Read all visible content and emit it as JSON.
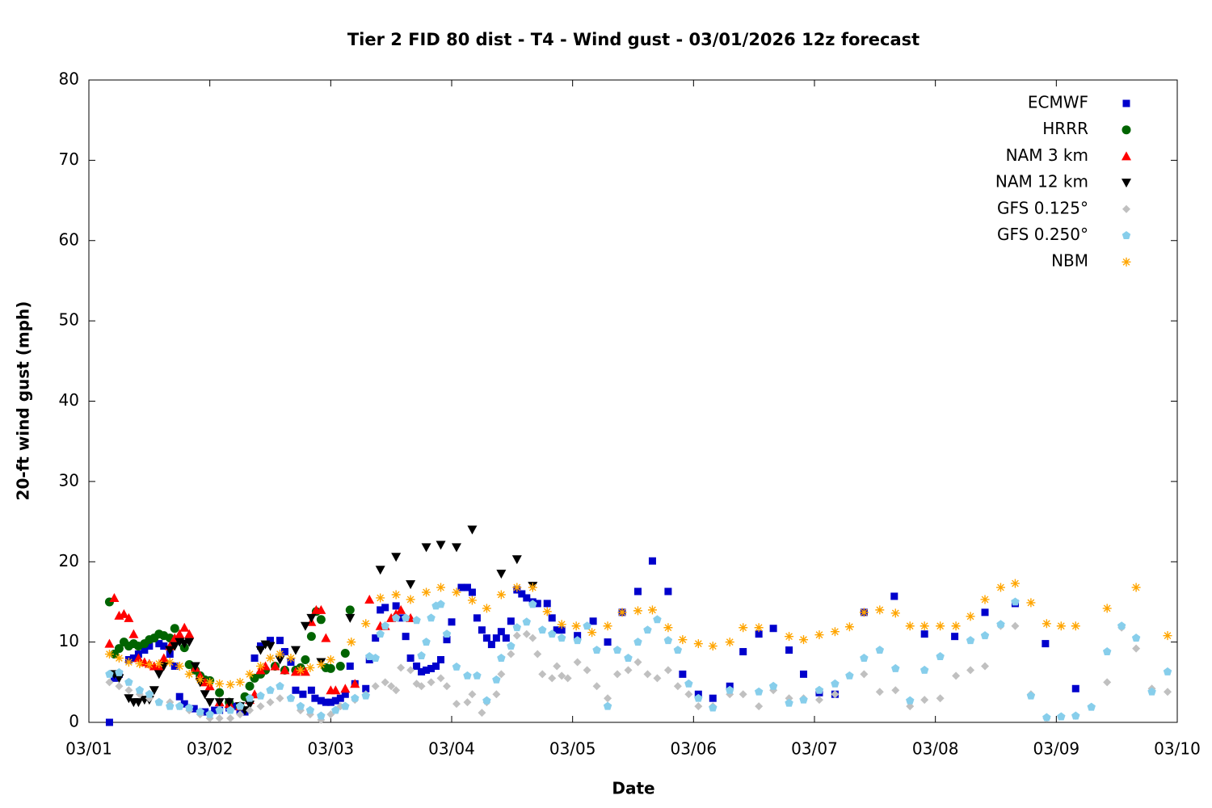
{
  "chart_data": {
    "type": "scatter",
    "title": "Tier 2 FID 80 dist - T4 - Wind gust - 03/01/2026 12z forecast",
    "x_label": "Date",
    "y_label": "20-ft wind gust (mph)",
    "xlim": [
      0,
      9
    ],
    "ylim": [
      0,
      80
    ],
    "xticks": [
      {
        "value": 0,
        "label": "03/01"
      },
      {
        "value": 1,
        "label": "03/02"
      },
      {
        "value": 2,
        "label": "03/03"
      },
      {
        "value": 3,
        "label": "03/04"
      },
      {
        "value": 4,
        "label": "03/05"
      },
      {
        "value": 5,
        "label": "03/06"
      },
      {
        "value": 6,
        "label": "03/07"
      },
      {
        "value": 7,
        "label": "03/08"
      },
      {
        "value": 8,
        "label": "03/09"
      },
      {
        "value": 9,
        "label": "03/10"
      }
    ],
    "yticks": [
      0,
      10,
      20,
      30,
      40,
      50,
      60,
      70,
      80
    ],
    "grid": false,
    "legend": "top-right",
    "series": [
      {
        "name": "ECMWF",
        "color": "#0000cc",
        "marker": "square",
        "x": [
          0.17,
          0.21,
          0.25,
          0.33,
          0.37,
          0.41,
          0.46,
          0.5,
          0.58,
          0.62,
          0.67,
          0.71,
          0.75,
          0.79,
          0.87,
          0.96,
          1.04,
          1.08,
          1.16,
          1.2,
          1.25,
          1.29,
          1.37,
          1.42,
          1.5,
          1.58,
          1.62,
          1.67,
          1.71,
          1.77,
          1.84,
          1.87,
          1.92,
          1.96,
          2.0,
          2.04,
          2.08,
          2.12,
          2.16,
          2.2,
          2.29,
          2.32,
          2.37,
          2.41,
          2.45,
          2.54,
          2.58,
          2.62,
          2.66,
          2.71,
          2.75,
          2.79,
          2.83,
          2.87,
          2.91,
          2.96,
          3.0,
          3.08,
          3.13,
          3.17,
          3.21,
          3.25,
          3.29,
          3.33,
          3.37,
          3.41,
          3.45,
          3.49,
          3.54,
          3.58,
          3.62,
          3.67,
          3.71,
          3.79,
          3.83,
          3.87,
          3.91,
          4.04,
          4.17,
          4.29,
          4.41,
          4.54,
          4.66,
          4.79,
          4.91,
          5.04,
          5.16,
          5.3,
          5.41,
          5.54,
          5.66,
          5.79,
          5.91,
          6.04,
          6.17,
          6.41,
          6.66,
          6.91,
          7.16,
          7.41,
          7.66,
          7.91,
          8.16
        ],
        "values": [
          0,
          5.5,
          6,
          7.8,
          8,
          8.5,
          9,
          9.5,
          9.8,
          9.5,
          8.5,
          7,
          3.2,
          2.3,
          1.7,
          1.3,
          1.5,
          1.5,
          1.8,
          2,
          1.5,
          1.3,
          8,
          9.5,
          10.2,
          10.2,
          8.8,
          7.5,
          4,
          3.5,
          4,
          3,
          2.7,
          2.5,
          2.5,
          2.7,
          3,
          3.5,
          7,
          4.8,
          4.2,
          7.8,
          10.5,
          14,
          14.3,
          14.5,
          13,
          10.7,
          8,
          7,
          6.3,
          6.5,
          6.7,
          7,
          7.8,
          10.3,
          12.5,
          16.8,
          16.8,
          16.2,
          13,
          11.5,
          10.5,
          9.7,
          10.5,
          11.3,
          10.5,
          12.6,
          16.5,
          16,
          15.5,
          15,
          14.8,
          14.8,
          13,
          11.5,
          11.5,
          10.8,
          12.6,
          10,
          13.7,
          16.3,
          20.1,
          16.3,
          6,
          3.5,
          3,
          4.5,
          8.8,
          11,
          11.7,
          9,
          6,
          3.7,
          3.5,
          13.7,
          15.7,
          11,
          10.7,
          13.7,
          14.8,
          9.8,
          4.2
        ]
      },
      {
        "name": "HRRR",
        "color": "#006400",
        "marker": "circle",
        "x": [
          0.17,
          0.21,
          0.25,
          0.29,
          0.33,
          0.37,
          0.41,
          0.46,
          0.5,
          0.54,
          0.58,
          0.62,
          0.67,
          0.71,
          0.75,
          0.79,
          0.83,
          0.88,
          0.92,
          0.96,
          1.0,
          1.08,
          1.16,
          1.25,
          1.29,
          1.33,
          1.37,
          1.42,
          1.46,
          1.54,
          1.62,
          1.71,
          1.75,
          1.79,
          1.84,
          1.88,
          1.92,
          1.96,
          2.0,
          2.08,
          2.12,
          2.16
        ],
        "values": [
          15,
          8.5,
          9.2,
          10,
          9.5,
          9.8,
          9.5,
          9.8,
          10.3,
          10.5,
          11,
          10.8,
          10.5,
          11.7,
          10.3,
          9.3,
          7.2,
          6.5,
          5.8,
          5.3,
          5.2,
          3.7,
          2.5,
          2,
          3.2,
          4.5,
          5.5,
          6,
          6.5,
          7,
          6.5,
          6.5,
          6.8,
          7.8,
          10.7,
          13.8,
          12.8,
          6.8,
          6.7,
          7,
          8.6,
          14
        ]
      },
      {
        "name": "NAM 3 km",
        "color": "#ff0000",
        "marker": "triangle-up",
        "x": [
          0.17,
          0.21,
          0.25,
          0.29,
          0.33,
          0.37,
          0.41,
          0.46,
          0.5,
          0.54,
          0.58,
          0.62,
          0.67,
          0.71,
          0.75,
          0.79,
          0.83,
          0.88,
          0.92,
          0.96,
          1.0,
          1.08,
          1.16,
          1.25,
          1.33,
          1.37,
          1.42,
          1.46,
          1.54,
          1.62,
          1.71,
          1.75,
          1.79,
          1.84,
          1.88,
          1.92,
          1.96,
          2.0,
          2.04,
          2.12,
          2.2,
          2.32,
          2.41,
          2.45,
          2.5,
          2.54,
          2.58,
          2.66
        ],
        "values": [
          9.8,
          15.5,
          13.3,
          13.5,
          13,
          11,
          8,
          7.5,
          7.3,
          7,
          7,
          8,
          9.5,
          10.5,
          11,
          11.8,
          11,
          6.8,
          5.8,
          5,
          4.5,
          2.5,
          2.3,
          2,
          2.8,
          3.5,
          6.5,
          7,
          7,
          6.5,
          6.3,
          6.5,
          6.3,
          12.5,
          14,
          14,
          10.5,
          4,
          4,
          4.2,
          4.8,
          15.3,
          12,
          12,
          13,
          13.5,
          14,
          13
        ]
      },
      {
        "name": "NAM 12 km",
        "color": "#000000",
        "marker": "triangle-down",
        "x": [
          0.21,
          0.25,
          0.33,
          0.37,
          0.41,
          0.46,
          0.5,
          0.54,
          0.58,
          0.62,
          0.67,
          0.71,
          0.75,
          0.79,
          0.83,
          0.88,
          0.92,
          0.96,
          1.0,
          1.08,
          1.16,
          1.25,
          1.29,
          1.33,
          1.42,
          1.46,
          1.5,
          1.58,
          1.71,
          1.79,
          1.84,
          1.92,
          2.16,
          2.41,
          2.54,
          2.66,
          2.79,
          2.91,
          3.04,
          3.17,
          3.41,
          3.54,
          3.67
        ],
        "values": [
          6,
          5.5,
          3,
          2.5,
          2.5,
          2.8,
          2.8,
          4,
          6,
          7,
          9,
          9.5,
          10,
          9.8,
          10,
          7,
          5,
          3.5,
          2.5,
          2.5,
          2.5,
          2,
          1.5,
          2.2,
          9,
          9.7,
          9.5,
          7.8,
          9,
          12,
          13,
          7.5,
          13,
          19,
          20.6,
          17.2,
          21.8,
          22.1,
          21.8,
          24,
          18.5,
          20.3,
          17
        ]
      },
      {
        "name": "GFS 0.125°",
        "color": "#c0c0c0",
        "marker": "diamond",
        "x": [
          0.17,
          0.25,
          0.33,
          0.42,
          0.5,
          0.58,
          0.67,
          0.75,
          0.83,
          0.92,
          1.0,
          1.08,
          1.17,
          1.25,
          1.33,
          1.42,
          1.5,
          1.58,
          1.67,
          1.75,
          1.83,
          1.92,
          2.0,
          2.08,
          2.2,
          2.29,
          2.37,
          2.45,
          2.5,
          2.54,
          2.58,
          2.66,
          2.71,
          2.75,
          2.83,
          2.91,
          2.96,
          3.04,
          3.13,
          3.17,
          3.25,
          3.29,
          3.37,
          3.41,
          3.49,
          3.54,
          3.62,
          3.67,
          3.71,
          3.75,
          3.83,
          3.87,
          3.91,
          3.96,
          4.04,
          4.12,
          4.2,
          4.29,
          4.37,
          4.46,
          4.54,
          4.62,
          4.7,
          4.79,
          4.87,
          4.96,
          5.04,
          5.16,
          5.3,
          5.41,
          5.54,
          5.66,
          5.79,
          5.91,
          6.04,
          6.17,
          6.41,
          6.54,
          6.67,
          6.79,
          6.91,
          7.04,
          7.17,
          7.29,
          7.41,
          7.54,
          7.66,
          7.79,
          7.92,
          8.16,
          8.42,
          8.54,
          8.66,
          8.79,
          8.92
        ],
        "values": [
          5,
          4.5,
          4,
          3.5,
          3,
          2.5,
          2.5,
          2,
          1.5,
          1,
          0.5,
          0.5,
          0.5,
          1,
          1.5,
          2,
          2.5,
          3,
          3,
          1.5,
          1,
          0.3,
          1,
          2,
          2.8,
          3.5,
          4.5,
          5,
          4.5,
          4,
          6.8,
          6.5,
          4.8,
          4.5,
          5,
          5.5,
          4.5,
          2.3,
          2.5,
          3.5,
          1.2,
          2.5,
          3.5,
          6,
          8.5,
          10.8,
          11,
          10.5,
          8.5,
          6,
          5.5,
          7,
          5.8,
          5.5,
          7.5,
          6.5,
          4.5,
          3,
          6,
          6.5,
          7.5,
          6,
          5.5,
          6.5,
          4.5,
          3.5,
          2,
          2,
          3.5,
          3.5,
          2,
          4,
          3,
          3,
          2.8,
          3.5,
          6,
          3.8,
          4,
          2,
          2.8,
          3,
          5.8,
          6.5,
          7,
          12,
          12,
          3.5,
          0.5,
          0.8,
          5,
          11.8,
          9.2,
          4.2,
          3.8
        ]
      },
      {
        "name": "GFS 0.250°",
        "color": "#87ceeb",
        "marker": "pentagon",
        "x": [
          0.17,
          0.25,
          0.33,
          0.42,
          0.5,
          0.58,
          0.67,
          0.75,
          0.83,
          0.92,
          1.0,
          1.08,
          1.17,
          1.25,
          1.33,
          1.42,
          1.5,
          1.58,
          1.67,
          1.75,
          1.83,
          1.92,
          2.04,
          2.12,
          2.2,
          2.29,
          2.32,
          2.37,
          2.41,
          2.45,
          2.54,
          2.62,
          2.71,
          2.75,
          2.79,
          2.83,
          2.87,
          2.91,
          2.96,
          3.04,
          3.13,
          3.21,
          3.29,
          3.37,
          3.41,
          3.49,
          3.54,
          3.62,
          3.67,
          3.75,
          3.83,
          3.91,
          4.04,
          4.12,
          4.2,
          4.29,
          4.37,
          4.46,
          4.54,
          4.62,
          4.7,
          4.79,
          4.87,
          4.96,
          5.04,
          5.16,
          5.3,
          5.54,
          5.66,
          5.79,
          5.91,
          6.04,
          6.17,
          6.29,
          6.41,
          6.54,
          6.67,
          6.79,
          6.91,
          7.04,
          7.29,
          7.41,
          7.54,
          7.66,
          7.79,
          7.92,
          8.04,
          8.16,
          8.29,
          8.42,
          8.54,
          8.66,
          8.79,
          8.92
        ],
        "values": [
          6,
          6.2,
          5,
          4,
          3.5,
          2.5,
          2,
          2,
          1.8,
          1.3,
          1,
          1.5,
          1.5,
          2,
          3,
          3.3,
          4,
          4.5,
          3,
          2,
          1.5,
          0.8,
          1.5,
          2,
          3,
          3.3,
          8.2,
          8,
          11,
          12,
          13,
          13,
          12.7,
          8.3,
          10,
          13,
          14.5,
          14.7,
          11,
          6.9,
          5.8,
          5.8,
          2.7,
          5.3,
          8,
          9.5,
          11.8,
          12.5,
          14.7,
          11.5,
          11,
          10.5,
          10.2,
          12,
          9,
          2,
          9,
          8,
          10,
          11.5,
          12.8,
          10.2,
          9,
          4.8,
          3,
          1.8,
          4,
          3.8,
          4.5,
          2.4,
          2.8,
          4,
          4.8,
          5.8,
          8,
          9,
          6.7,
          2.7,
          6.5,
          8.2,
          10.2,
          10.8,
          12.2,
          15,
          3.3,
          0.6,
          0.7,
          0.8,
          1.9,
          8.8,
          12,
          10.5,
          3.8,
          6.3
        ]
      },
      {
        "name": "NBM",
        "color": "#ffa500",
        "marker": "star",
        "x": [
          0.17,
          0.25,
          0.33,
          0.42,
          0.5,
          0.58,
          0.67,
          0.75,
          0.83,
          0.92,
          1.0,
          1.08,
          1.17,
          1.25,
          1.33,
          1.42,
          1.5,
          1.58,
          1.67,
          1.75,
          1.83,
          1.92,
          2.0,
          2.17,
          2.29,
          2.41,
          2.54,
          2.66,
          2.79,
          2.91,
          3.04,
          3.17,
          3.29,
          3.41,
          3.54,
          3.67,
          3.79,
          3.91,
          4.03,
          4.16,
          4.29,
          4.41,
          4.54,
          4.66,
          4.79,
          4.91,
          5.04,
          5.16,
          5.3,
          5.41,
          5.54,
          5.79,
          5.91,
          6.04,
          6.17,
          6.29,
          6.41,
          6.54,
          6.67,
          6.79,
          6.91,
          7.04,
          7.17,
          7.29,
          7.41,
          7.54,
          7.66,
          7.79,
          7.92,
          8.04,
          8.16,
          8.42,
          8.66,
          8.92
        ],
        "values": [
          8.5,
          8,
          7.5,
          7.3,
          7.2,
          7.3,
          7.5,
          7,
          6,
          5.3,
          5,
          4.8,
          4.7,
          5,
          6,
          7,
          8,
          8.5,
          8,
          6.5,
          6.8,
          7.2,
          7.8,
          10,
          12.3,
          15.5,
          15.9,
          15.3,
          16.2,
          16.8,
          16.2,
          15.2,
          14.2,
          15.9,
          16.8,
          16.8,
          13.8,
          12.2,
          12,
          11.2,
          12,
          13.7,
          13.9,
          14,
          11.8,
          10.3,
          9.8,
          9.5,
          10,
          11.8,
          11.8,
          10.7,
          10.3,
          10.9,
          11.3,
          11.9,
          13.7,
          14,
          13.6,
          12,
          12,
          12,
          12,
          13.2,
          15.3,
          16.8,
          17.3,
          14.9,
          12.3,
          12,
          12,
          14.2,
          16.8,
          10.8
        ]
      }
    ]
  }
}
